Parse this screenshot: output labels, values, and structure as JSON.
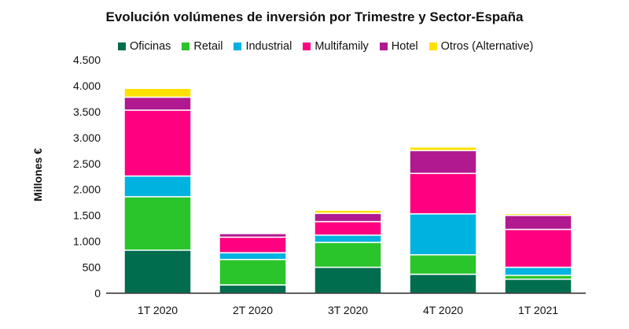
{
  "chart_data": {
    "type": "bar",
    "stacked": true,
    "title": "Evolución volúmenes de inversión por Trimestre y Sector-España",
    "xlabel": "",
    "ylabel": "Millones €",
    "ylim": [
      0,
      4500
    ],
    "yticks": [
      0,
      500,
      1000,
      1500,
      2000,
      2500,
      3000,
      3500,
      4000,
      4500
    ],
    "ytick_labels": [
      "0",
      "500",
      "1.000",
      "1.500",
      "2.000",
      "2.500",
      "3.000",
      "3.500",
      "4.000",
      "4.500"
    ],
    "grid": false,
    "legend_position": "top",
    "categories": [
      "1T 2020",
      "2T 2020",
      "3T 2020",
      "4T 2020",
      "1T 2021"
    ],
    "series": [
      {
        "name": "Oficinas",
        "color": "#006D4F",
        "values": [
          830,
          160,
          500,
          365,
          270
        ]
      },
      {
        "name": "Retail",
        "color": "#2AC52A",
        "values": [
          1030,
          490,
          480,
          375,
          75
        ]
      },
      {
        "name": "Industrial",
        "color": "#00B2E0",
        "values": [
          400,
          130,
          140,
          790,
          155
        ]
      },
      {
        "name": "Multifamily",
        "color": "#FF0080",
        "values": [
          1270,
          300,
          260,
          780,
          730
        ]
      },
      {
        "name": "Hotel",
        "color": "#B0198F",
        "values": [
          250,
          70,
          160,
          440,
          270
        ]
      },
      {
        "name": "Otros (Alternative)",
        "color": "#FFE000",
        "values": [
          170,
          10,
          60,
          70,
          35
        ]
      }
    ]
  }
}
